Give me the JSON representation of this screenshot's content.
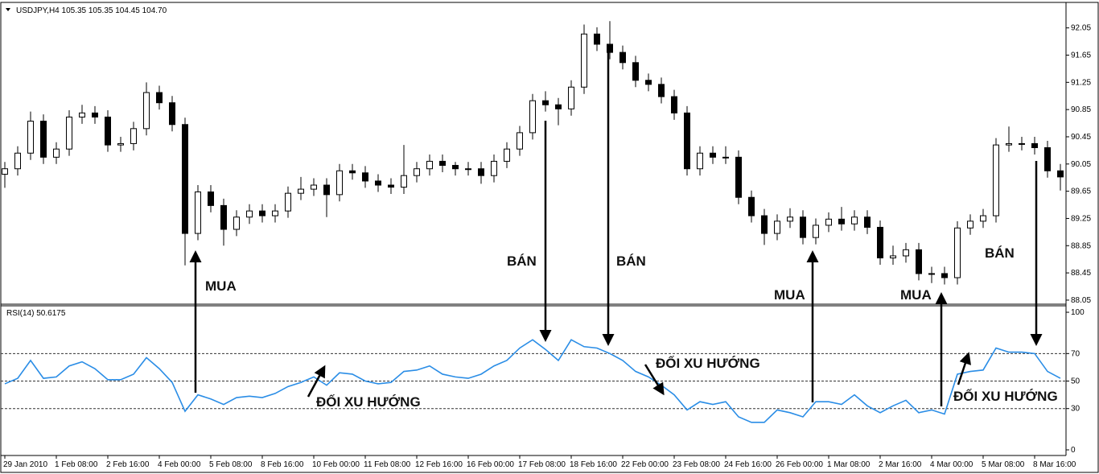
{
  "chart_data": [
    {
      "type": "candlestick",
      "title": "USDJPY,H4  105.35 105.35 104.45 104.70",
      "open": [
        89.9,
        89.98,
        90.21,
        90.68,
        90.15,
        90.27,
        90.74,
        90.8,
        90.74,
        90.33,
        90.35,
        90.57,
        91.1,
        90.95,
        90.63,
        89.03,
        89.64,
        89.44,
        89.09,
        89.27,
        89.36,
        89.29,
        89.36,
        89.62,
        89.68,
        89.74,
        89.6,
        89.95,
        89.92,
        89.8,
        89.74,
        89.71,
        89.88,
        89.98,
        90.09,
        90.03,
        89.98,
        89.98,
        89.88,
        90.09,
        90.27,
        90.51,
        90.98,
        90.92,
        90.86,
        91.18,
        91.96,
        91.81,
        91.69,
        91.54,
        91.28,
        91.22,
        91.04,
        90.8,
        89.98,
        90.21,
        90.15,
        90.15,
        89.56,
        89.29,
        89.03,
        89.21,
        89.27,
        88.97,
        89.15,
        89.24,
        89.17,
        89.27,
        89.12,
        88.67,
        88.7,
        88.79,
        88.44,
        88.44,
        88.38,
        89.11,
        89.21,
        89.29,
        90.33,
        90.35,
        90.35,
        90.29,
        89.95
      ],
      "high": [
        90.08,
        90.31,
        90.82,
        90.78,
        90.37,
        90.84,
        90.92,
        90.9,
        90.84,
        90.45,
        90.67,
        91.25,
        91.2,
        91.05,
        90.73,
        89.74,
        89.74,
        89.54,
        89.37,
        89.46,
        89.46,
        89.46,
        89.72,
        89.86,
        89.84,
        89.84,
        90.05,
        90.05,
        90.02,
        89.9,
        89.84,
        90.33,
        90.08,
        90.19,
        90.19,
        90.08,
        90.08,
        90.08,
        90.19,
        90.37,
        90.61,
        91.08,
        91.12,
        91.02,
        91.28,
        92.1,
        92.06,
        92.15,
        91.79,
        91.64,
        91.38,
        91.32,
        91.14,
        90.9,
        90.31,
        90.31,
        90.31,
        90.25,
        89.66,
        89.39,
        89.31,
        89.4,
        89.37,
        89.25,
        89.34,
        89.42,
        89.37,
        89.37,
        89.22,
        88.85,
        88.89,
        88.89,
        88.54,
        88.54,
        89.21,
        89.31,
        89.39,
        90.43,
        90.6,
        90.45,
        90.45,
        90.39,
        90.05
      ],
      "low": [
        89.7,
        89.88,
        90.11,
        90.05,
        90.05,
        90.17,
        90.64,
        90.64,
        90.23,
        90.23,
        90.25,
        90.47,
        90.85,
        90.53,
        88.56,
        88.93,
        89.34,
        88.85,
        88.99,
        89.17,
        89.19,
        89.19,
        89.26,
        89.52,
        89.58,
        89.27,
        89.5,
        89.82,
        89.7,
        89.64,
        89.61,
        89.61,
        89.78,
        89.88,
        89.93,
        89.88,
        89.88,
        89.76,
        89.78,
        89.99,
        90.17,
        90.41,
        90.82,
        90.62,
        90.76,
        91.08,
        91.71,
        91.59,
        91.44,
        91.18,
        91.12,
        90.94,
        90.7,
        89.88,
        89.88,
        90.05,
        90.05,
        89.46,
        89.19,
        88.86,
        88.93,
        89.11,
        88.87,
        88.87,
        89.05,
        89.07,
        89.07,
        89.02,
        88.57,
        88.57,
        88.6,
        88.34,
        88.3,
        88.28,
        88.28,
        89.01,
        89.11,
        89.19,
        90.23,
        90.25,
        90.19,
        89.85,
        89.66
      ],
      "close": [
        89.98,
        90.21,
        90.68,
        90.15,
        90.27,
        90.74,
        90.8,
        90.74,
        90.33,
        90.35,
        90.57,
        91.1,
        90.95,
        90.63,
        89.03,
        89.64,
        89.44,
        89.09,
        89.27,
        89.36,
        89.29,
        89.36,
        89.62,
        89.68,
        89.74,
        89.6,
        89.95,
        89.92,
        89.8,
        89.74,
        89.71,
        89.88,
        89.98,
        90.09,
        90.03,
        89.98,
        89.98,
        89.88,
        90.09,
        90.27,
        90.51,
        90.98,
        90.92,
        90.86,
        91.18,
        91.96,
        91.81,
        91.69,
        91.54,
        91.28,
        91.22,
        91.04,
        90.8,
        89.98,
        90.21,
        90.15,
        90.15,
        89.56,
        89.29,
        89.03,
        89.21,
        89.27,
        88.97,
        89.15,
        89.24,
        89.17,
        89.27,
        89.12,
        88.67,
        88.7,
        88.79,
        88.44,
        88.44,
        88.38,
        89.11,
        89.21,
        89.29,
        90.33,
        90.35,
        90.35,
        90.29,
        89.95,
        89.86
      ],
      "ylim": [
        87.99,
        92.46
      ],
      "yticks": [
        92.05,
        91.65,
        91.25,
        90.85,
        90.45,
        90.05,
        89.65,
        89.25,
        88.85,
        88.45,
        88.05
      ],
      "annotations": [
        "MUA",
        "BÁN",
        "BÁN",
        "MUA",
        "MUA",
        "BÁN"
      ]
    },
    {
      "type": "line",
      "title": "RSI(14) 50.6175",
      "color": "#2a8de6",
      "categories": [
        "29 Jan 2010",
        null,
        null,
        null,
        "1 Feb 08:00",
        null,
        null,
        null,
        "2 Feb 16:00",
        null,
        null,
        null,
        "4 Feb 00:00",
        null,
        null,
        null,
        "5 Feb 08:00",
        null,
        null,
        null,
        "8 Feb 16:00",
        null,
        null,
        null,
        "10 Feb 00:00",
        null,
        null,
        null,
        "11 Feb 08:00",
        null,
        null,
        null,
        "12 Feb 16:00",
        null,
        null,
        null,
        "16 Feb 00:00",
        null,
        null,
        null,
        "17 Feb 08:00",
        null,
        null,
        null,
        "18 Feb 16:00",
        null,
        null,
        null,
        "22 Feb 00:00",
        null,
        null,
        null,
        "23 Feb 08:00",
        null,
        null,
        null,
        "24 Feb 16:00",
        null,
        null,
        null,
        "26 Feb 00:00",
        null,
        null,
        null,
        "1 Mar 08:00",
        null,
        null,
        null,
        "2 Mar 16:00",
        null,
        null,
        null,
        "4 Mar 00:00",
        null,
        null,
        null,
        "5 Mar 08:00",
        null,
        null,
        null,
        "8 Mar 16:00",
        null,
        null
      ],
      "values": [
        48,
        52,
        65,
        52,
        53,
        61,
        64,
        59,
        51,
        51,
        55,
        67,
        59,
        49,
        28,
        40,
        37,
        33,
        38,
        39,
        38,
        41,
        46,
        49,
        53,
        47,
        56,
        55,
        50,
        48,
        49,
        57,
        58,
        61,
        55,
        53,
        52,
        55,
        61,
        65,
        74,
        80,
        73,
        65,
        80,
        75,
        74,
        70,
        65,
        57,
        53,
        47,
        40,
        29,
        35,
        33,
        35,
        24,
        20,
        20,
        29,
        27,
        24,
        35,
        35,
        33,
        40,
        32,
        27,
        32,
        36,
        27,
        29,
        26,
        55,
        57,
        58,
        74,
        71,
        71,
        70,
        57,
        52
      ],
      "ylim": [
        -4.1,
        104.7
      ],
      "yticks": [
        100,
        70,
        50,
        30,
        0
      ],
      "levels": [
        70,
        50,
        30
      ],
      "annotations": [
        "ĐỐI XU HƯỚNG",
        "ĐỐI XU HƯỚNG",
        "ĐỐI XU HƯỚNG"
      ]
    }
  ]
}
